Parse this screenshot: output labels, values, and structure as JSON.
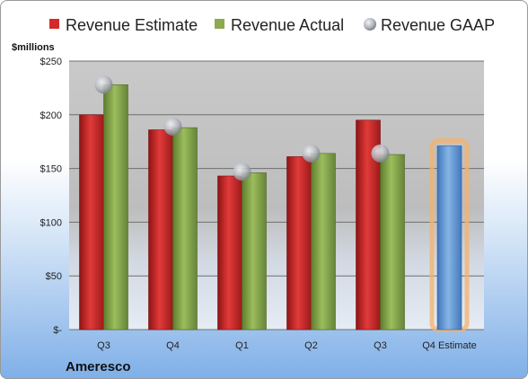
{
  "company": "Ameresco",
  "colors": {
    "estimate": "#d42a2a",
    "actual": "#8aab4e",
    "gaap": "#b8bcc4",
    "q4_estimate": "#74a6dd",
    "highlight": "#f6b26b"
  },
  "chart_data": {
    "type": "bar",
    "ylabel": "$millions",
    "ylim": [
      0,
      250
    ],
    "y_ticks": [
      0,
      50,
      100,
      150,
      200,
      250
    ],
    "y_tick_labels": [
      "$-",
      "$50",
      "$100",
      "$150",
      "$200",
      "$250"
    ],
    "categories": [
      "Q3",
      "Q4",
      "Q1",
      "Q2",
      "Q3",
      "Q4 Estimate"
    ],
    "legend_position": "top",
    "series": [
      {
        "name": "Revenue Estimate",
        "mark": "bar",
        "values": [
          200,
          186,
          143,
          161,
          195,
          171
        ]
      },
      {
        "name": "Revenue Actual",
        "mark": "bar",
        "values": [
          228,
          188,
          146,
          164,
          163,
          null
        ]
      },
      {
        "name": "Revenue GAAP",
        "mark": "point",
        "values": [
          228,
          189,
          147,
          164,
          164,
          null
        ]
      }
    ]
  }
}
